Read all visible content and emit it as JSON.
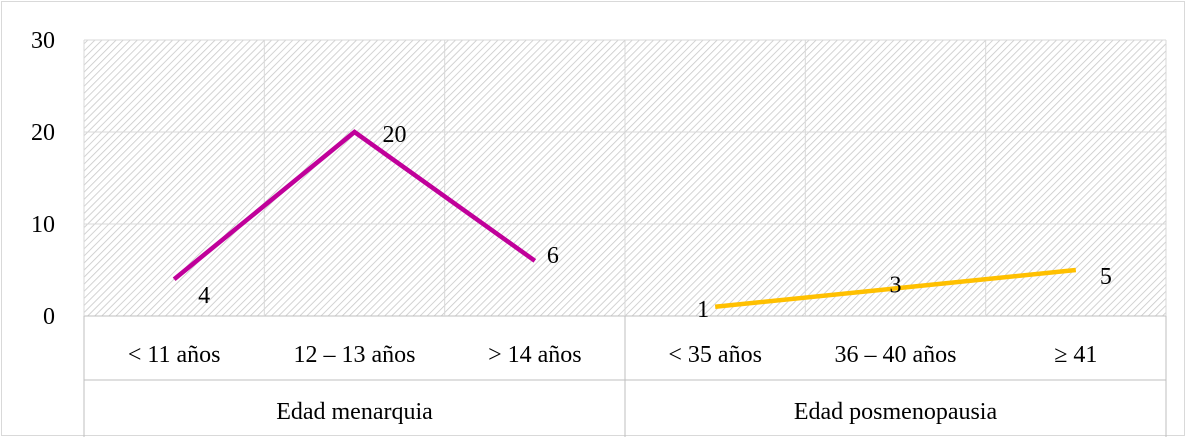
{
  "chart_data": {
    "type": "line",
    "title": "",
    "xlabel": "",
    "ylabel": "",
    "ylim": [
      0,
      30
    ],
    "yticks": [
      0,
      10,
      20,
      30
    ],
    "grid": true,
    "background": "diagonal-hatch",
    "groups": [
      {
        "label": "Edad menarquia",
        "categories": [
          "< 11 años",
          "12 – 13 años",
          "> 14 años"
        ]
      },
      {
        "label": "Edad posmenopausia",
        "categories": [
          "< 35 años",
          "36 – 40 años",
          "≥ 41"
        ]
      }
    ],
    "series": [
      {
        "group": 0,
        "values": [
          4,
          20,
          6
        ],
        "color": "#C0009A"
      },
      {
        "group": 1,
        "values": [
          1,
          3,
          5
        ],
        "color": "#FFC000"
      }
    ]
  }
}
